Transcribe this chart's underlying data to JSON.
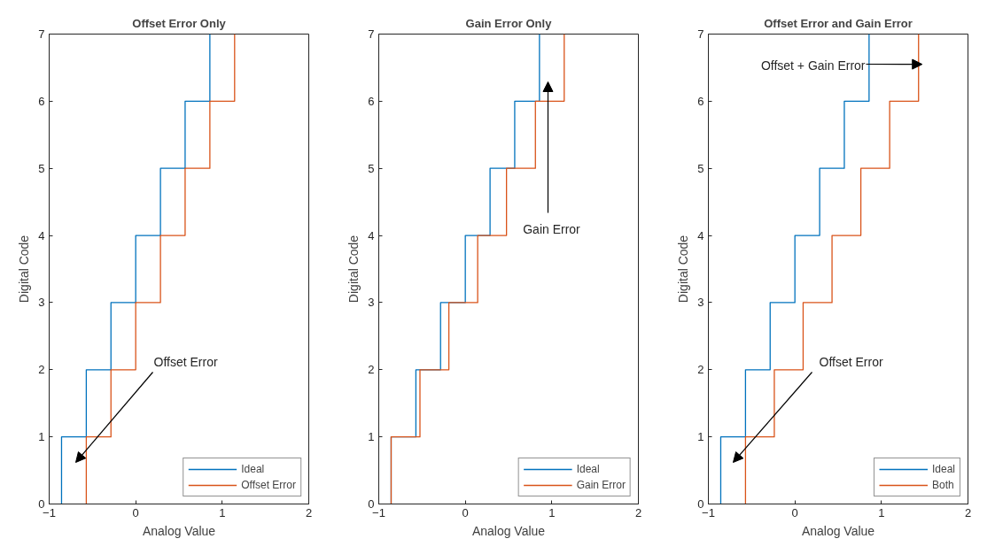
{
  "chart_data": [
    {
      "type": "step",
      "title": "Offset Error Only",
      "xlabel": "Analog Value",
      "ylabel": "Digital Code",
      "xlim": [
        -1,
        2
      ],
      "ylim": [
        0,
        7
      ],
      "xticks": [
        -1,
        0,
        1,
        2
      ],
      "yticks": [
        0,
        1,
        2,
        3,
        4,
        5,
        6,
        7
      ],
      "legend": "bottom right",
      "series": [
        {
          "name": "Ideal",
          "color": "#0072bd",
          "x": [
            -0.857,
            -0.857,
            -0.571,
            -0.286,
            0,
            0.286,
            0.571,
            0.857
          ],
          "values": [
            0,
            1,
            2,
            3,
            4,
            5,
            6,
            7
          ]
        },
        {
          "name": "Offset Error",
          "color": "#d95319",
          "x": [
            -0.571,
            -0.571,
            -0.286,
            0,
            0.286,
            0.571,
            0.857,
            1.143
          ],
          "values": [
            0,
            1,
            2,
            3,
            4,
            5,
            6,
            7
          ]
        }
      ],
      "annotations": [
        "Offset Error"
      ]
    },
    {
      "type": "step",
      "title": "Gain Error Only",
      "xlabel": "Analog Value",
      "ylabel": "Digital Code",
      "xlim": [
        -1,
        2
      ],
      "ylim": [
        0,
        7
      ],
      "xticks": [
        -1,
        0,
        1,
        2
      ],
      "yticks": [
        0,
        1,
        2,
        3,
        4,
        5,
        6,
        7
      ],
      "legend": "bottom right",
      "series": [
        {
          "name": "Ideal",
          "color": "#0072bd",
          "x": [
            -0.857,
            -0.857,
            -0.571,
            -0.286,
            0,
            0.286,
            0.571,
            0.857
          ],
          "values": [
            0,
            1,
            2,
            3,
            4,
            5,
            6,
            7
          ]
        },
        {
          "name": "Gain Error",
          "color": "#d95319",
          "x": [
            -0.857,
            -0.857,
            -0.524,
            -0.19,
            0.143,
            0.476,
            0.81,
            1.143
          ],
          "values": [
            0,
            1,
            2,
            3,
            4,
            5,
            6,
            7
          ]
        }
      ],
      "annotations": [
        "Gain Error"
      ]
    },
    {
      "type": "step",
      "title": "Offset Error and Gain Error",
      "xlabel": "Analog Value",
      "ylabel": "Digital Code",
      "xlim": [
        -1,
        2
      ],
      "ylim": [
        0,
        7
      ],
      "xticks": [
        -1,
        0,
        1,
        2
      ],
      "yticks": [
        0,
        1,
        2,
        3,
        4,
        5,
        6,
        7
      ],
      "legend": "bottom right",
      "series": [
        {
          "name": "Ideal",
          "color": "#0072bd",
          "x": [
            -0.857,
            -0.857,
            -0.571,
            -0.286,
            0,
            0.286,
            0.571,
            0.857
          ],
          "values": [
            0,
            1,
            2,
            3,
            4,
            5,
            6,
            7
          ]
        },
        {
          "name": "Both",
          "color": "#d95319",
          "x": [
            -0.571,
            -0.571,
            -0.238,
            0.095,
            0.429,
            0.762,
            1.095,
            1.429
          ],
          "values": [
            0,
            1,
            2,
            3,
            4,
            5,
            6,
            7
          ]
        }
      ],
      "annotations": [
        {
          "text": "Offset + Gain Error",
          "x": 1.47,
          "y": 6.55
        },
        "Offset Error"
      ]
    }
  ]
}
